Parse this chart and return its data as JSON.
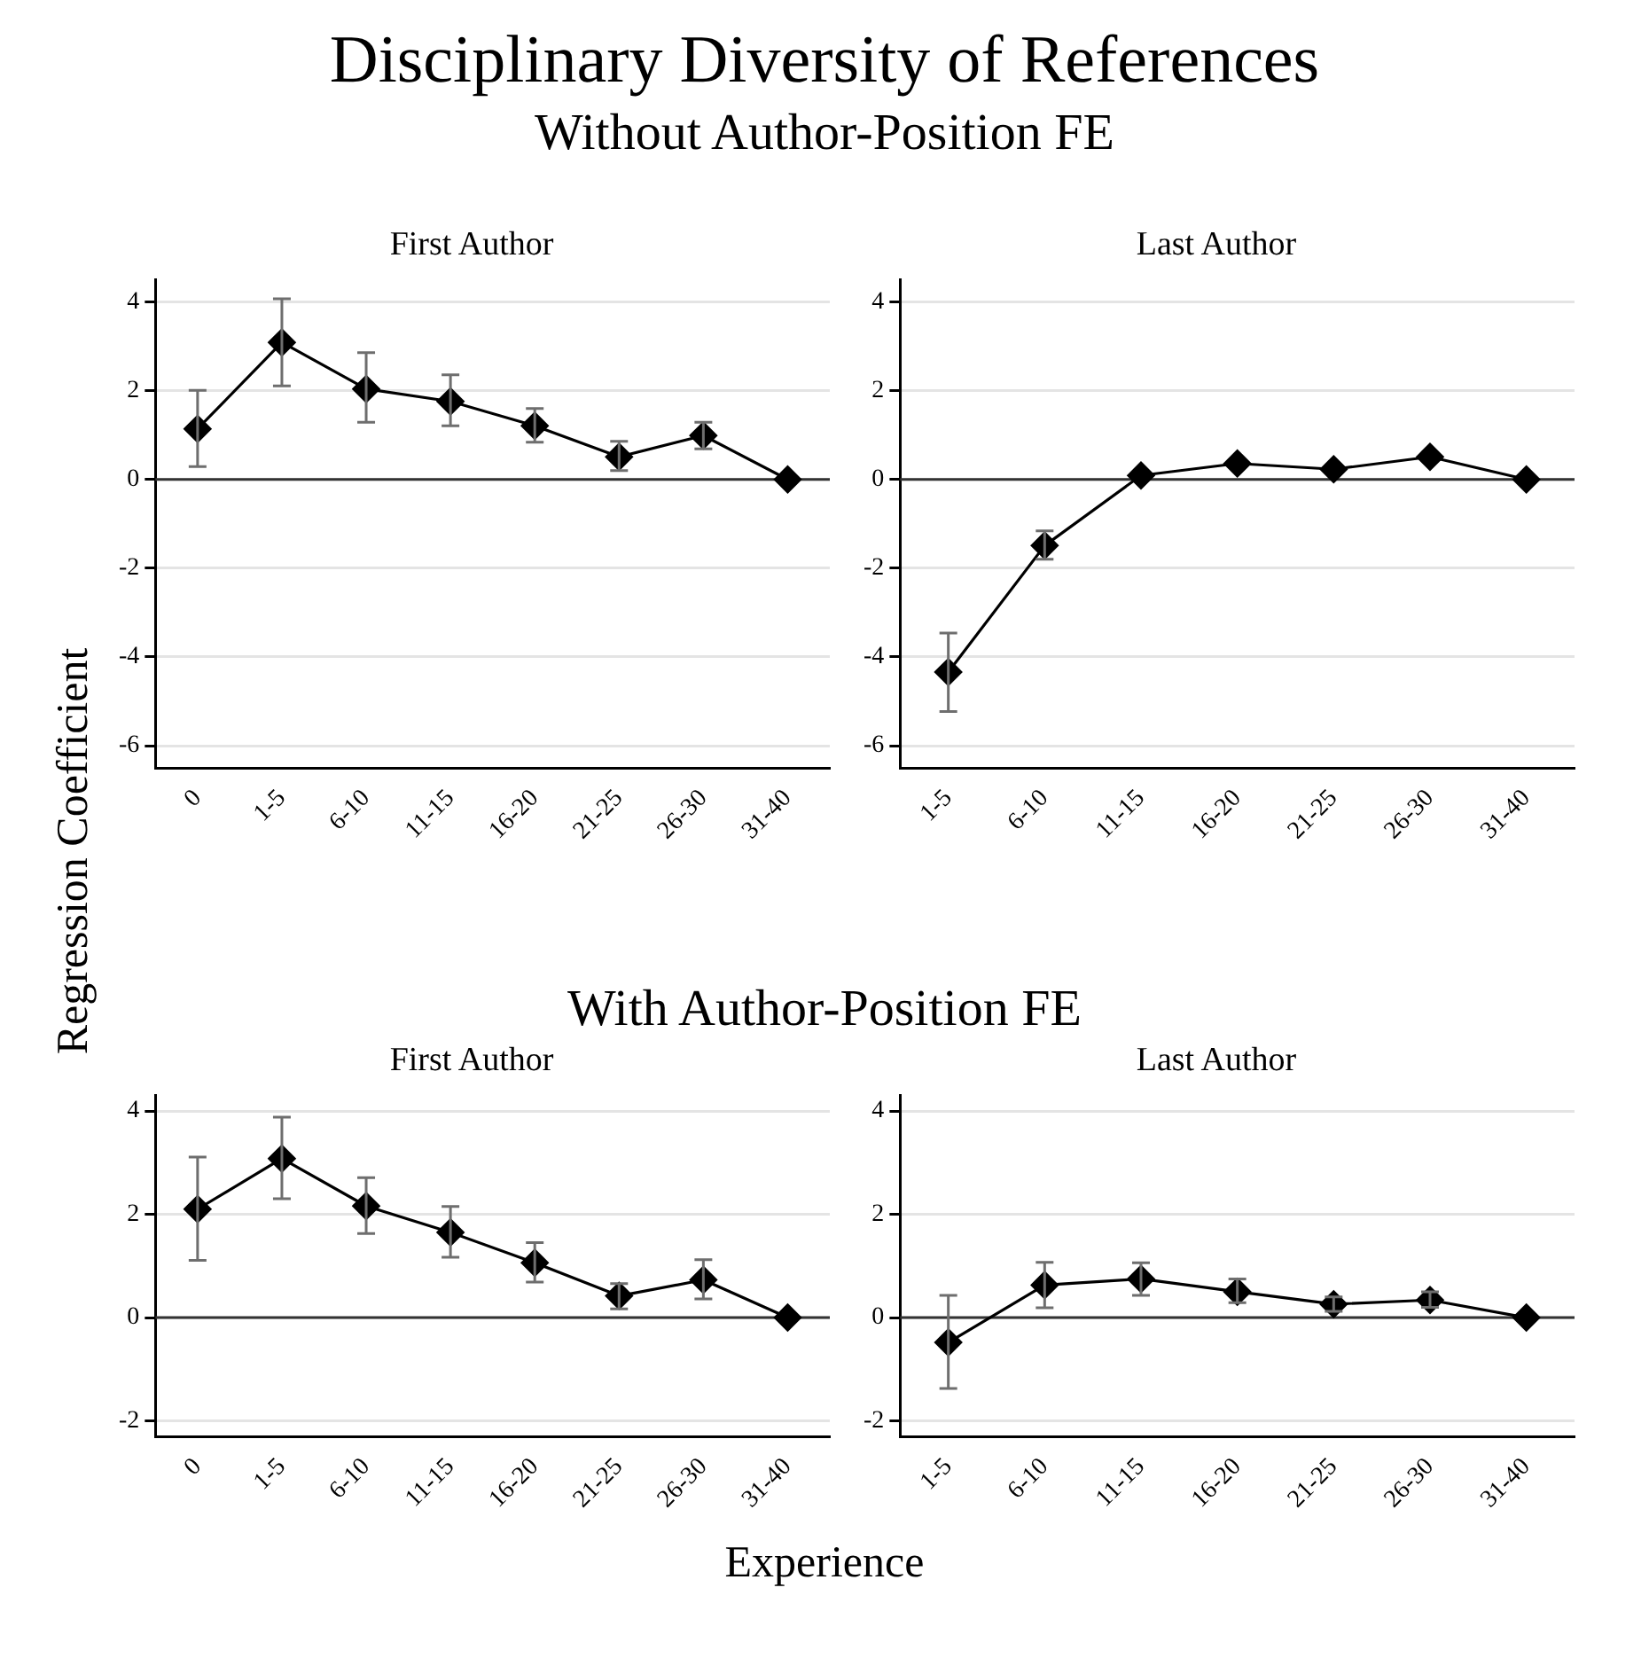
{
  "chart_data": [
    {
      "type": "line",
      "title": "First Author",
      "annotations": [
        "Disciplinary Diversity of References",
        "Without Author-Position FE"
      ],
      "ylabel": "Regression Coefficient",
      "categories": [
        "0",
        "1-5",
        "6-10",
        "11-15",
        "16-20",
        "21-25",
        "26-30",
        "31-40"
      ],
      "values": [
        1.14,
        3.09,
        2.04,
        1.76,
        1.21,
        0.51,
        0.99,
        0
      ],
      "errors": [
        [
          0.29,
          2.01
        ],
        [
          2.11,
          4.07
        ],
        [
          1.29,
          2.86
        ],
        [
          1.21,
          2.36
        ],
        [
          0.84,
          1.6
        ],
        [
          0.2,
          0.86
        ],
        [
          0.69,
          1.29
        ],
        null
      ],
      "color": "#000000",
      "ylim": [
        -6.5,
        4.5
      ],
      "yticks": [
        -6,
        -4,
        -2,
        0,
        2,
        4
      ],
      "grid": "y",
      "marker": "diamond",
      "legend": false,
      "ref_lines": [
        {
          "axis": "y",
          "value": 0,
          "color": "#333333"
        }
      ]
    },
    {
      "type": "line",
      "title": "Last Author",
      "categories": [
        "1-5",
        "6-10",
        "11-15",
        "16-20",
        "21-25",
        "26-30",
        "31-40"
      ],
      "values": [
        -4.34,
        -1.49,
        0.09,
        0.36,
        0.23,
        0.51,
        0
      ],
      "errors": [
        [
          -5.23,
          -3.46
        ],
        [
          -1.8,
          -1.16
        ],
        null,
        null,
        null,
        null,
        null
      ],
      "color": "#000000",
      "ylim": [
        -6.5,
        4.5
      ],
      "yticks": [
        -6,
        -4,
        -2,
        0,
        2,
        4
      ],
      "grid": "y",
      "marker": "diamond",
      "legend": false,
      "ref_lines": [
        {
          "axis": "y",
          "value": 0,
          "color": "#333333"
        }
      ]
    },
    {
      "type": "line",
      "title": "First Author",
      "annotations": [
        "With Author-Position FE"
      ],
      "xlabel": "Experience",
      "categories": [
        "0",
        "1-5",
        "6-10",
        "11-15",
        "16-20",
        "21-25",
        "26-30",
        "31-40"
      ],
      "values": [
        2.1,
        3.08,
        2.16,
        1.65,
        1.06,
        0.42,
        0.73,
        0
      ],
      "errors": [
        [
          1.11,
          3.11
        ],
        [
          2.3,
          3.88
        ],
        [
          1.63,
          2.71
        ],
        [
          1.17,
          2.15
        ],
        [
          0.69,
          1.45
        ],
        [
          0.17,
          0.66
        ],
        [
          0.36,
          1.12
        ],
        null
      ],
      "color": "#000000",
      "ylim": [
        -2.3,
        4.3
      ],
      "yticks": [
        -2,
        0,
        2,
        4
      ],
      "grid": "y",
      "marker": "diamond",
      "legend": false,
      "ref_lines": [
        {
          "axis": "y",
          "value": 0,
          "color": "#333333"
        }
      ]
    },
    {
      "type": "line",
      "title": "Last Author",
      "categories": [
        "1-5",
        "6-10",
        "11-15",
        "16-20",
        "21-25",
        "26-30",
        "31-40"
      ],
      "values": [
        -0.48,
        0.63,
        0.75,
        0.5,
        0.26,
        0.34,
        0
      ],
      "errors": [
        [
          -1.37,
          0.43
        ],
        [
          0.19,
          1.07
        ],
        [
          0.43,
          1.06
        ],
        [
          0.29,
          0.75
        ],
        [
          0.12,
          0.4
        ],
        [
          0.2,
          0.5
        ],
        null
      ],
      "color": "#000000",
      "ylim": [
        -2.3,
        4.3
      ],
      "yticks": [
        -2,
        0,
        2,
        4
      ],
      "grid": "y",
      "marker": "diamond",
      "legend": false,
      "ref_lines": [
        {
          "axis": "y",
          "value": 0,
          "color": "#333333"
        }
      ]
    }
  ]
}
